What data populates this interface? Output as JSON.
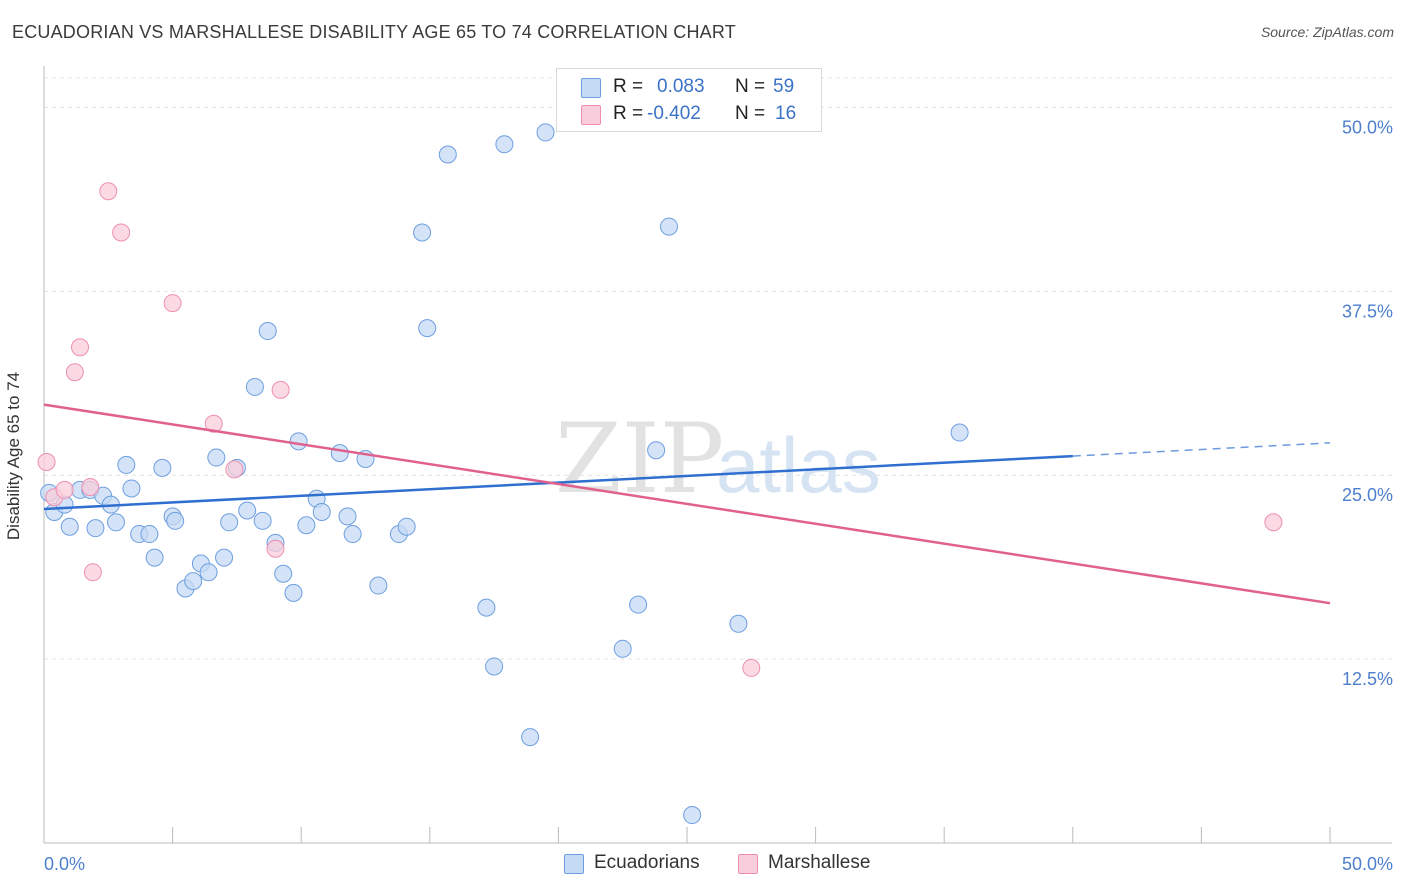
{
  "title": "ECUADORIAN VS MARSHALLESE DISABILITY AGE 65 TO 74 CORRELATION CHART",
  "source": "Source: ZipAtlas.com",
  "watermark": {
    "zip": "ZIP",
    "atlas": "atlas"
  },
  "legend": {
    "r_label": "R =",
    "n_label": "N =",
    "rows": [
      {
        "r": "0.083",
        "n": "59",
        "color": "#aac8f0"
      },
      {
        "r": "-0.402",
        "n": "16",
        "color": "#f6b8cb"
      }
    ]
  },
  "bottom_legend": {
    "ecuadorians": "Ecuadorians",
    "marshallese": "Marshallese"
  },
  "chart_data": {
    "type": "scatter",
    "title": "ECUADORIAN VS MARSHALLESE DISABILITY AGE 65 TO 74 CORRELATION CHART",
    "xlabel": "",
    "ylabel": "Disability Age 65 to 74",
    "xlim": [
      0,
      50
    ],
    "ylim": [
      0,
      52
    ],
    "x_tick_labels": [
      "0.0%",
      "50.0%"
    ],
    "y_ticks": [
      12.5,
      25.0,
      37.5,
      50.0
    ],
    "y_tick_labels": [
      "12.5%",
      "25.0%",
      "37.5%",
      "50.0%"
    ],
    "grid": true,
    "legend_position": "top-center",
    "series": [
      {
        "name": "Ecuadorians",
        "color": "#6d9fe0",
        "fill": "#c5daf4",
        "trend": {
          "x": [
            0,
            40
          ],
          "y": [
            22.7,
            26.3
          ],
          "dashed_to_x": 50,
          "dashed_to_y": 27.2,
          "color": "#2f6fd0"
        },
        "points": [
          [
            0.2,
            23.8
          ],
          [
            0.4,
            22.5
          ],
          [
            0.8,
            23.0
          ],
          [
            1.0,
            21.5
          ],
          [
            1.4,
            24.0
          ],
          [
            1.8,
            24.0
          ],
          [
            2.0,
            21.4
          ],
          [
            2.3,
            23.6
          ],
          [
            2.6,
            23.0
          ],
          [
            2.8,
            21.8
          ],
          [
            3.2,
            25.7
          ],
          [
            3.4,
            24.1
          ],
          [
            3.7,
            21.0
          ],
          [
            4.1,
            21.0
          ],
          [
            4.3,
            19.4
          ],
          [
            4.6,
            25.5
          ],
          [
            5.0,
            22.2
          ],
          [
            5.1,
            21.9
          ],
          [
            5.5,
            17.3
          ],
          [
            5.8,
            17.8
          ],
          [
            6.1,
            19.0
          ],
          [
            6.4,
            18.4
          ],
          [
            6.7,
            26.2
          ],
          [
            7.0,
            19.4
          ],
          [
            7.2,
            21.8
          ],
          [
            7.5,
            25.5
          ],
          [
            7.9,
            22.6
          ],
          [
            8.2,
            31.0
          ],
          [
            8.5,
            21.9
          ],
          [
            8.7,
            34.8
          ],
          [
            9.0,
            20.4
          ],
          [
            9.3,
            18.3
          ],
          [
            9.7,
            17.0
          ],
          [
            9.9,
            27.3
          ],
          [
            10.2,
            21.6
          ],
          [
            10.6,
            23.4
          ],
          [
            10.8,
            22.5
          ],
          [
            11.5,
            26.5
          ],
          [
            11.8,
            22.2
          ],
          [
            12.0,
            21.0
          ],
          [
            12.5,
            26.1
          ],
          [
            13.0,
            17.5
          ],
          [
            13.8,
            21.0
          ],
          [
            14.1,
            21.5
          ],
          [
            14.7,
            41.5
          ],
          [
            14.9,
            35.0
          ],
          [
            15.7,
            46.8
          ],
          [
            17.2,
            16.0
          ],
          [
            17.5,
            12.0
          ],
          [
            17.9,
            47.5
          ],
          [
            18.9,
            7.2
          ],
          [
            19.5,
            48.3
          ],
          [
            22.5,
            13.2
          ],
          [
            23.1,
            16.2
          ],
          [
            23.8,
            26.7
          ],
          [
            24.3,
            41.9
          ],
          [
            25.2,
            1.9
          ],
          [
            27.0,
            14.9
          ],
          [
            35.6,
            27.9
          ]
        ]
      },
      {
        "name": "Marshallese",
        "color": "#ee8fb0",
        "fill": "#f9cddb",
        "trend": {
          "x": [
            0,
            50
          ],
          "y": [
            29.8,
            16.3
          ],
          "color": "#e0608e"
        },
        "points": [
          [
            0.1,
            25.9
          ],
          [
            0.4,
            23.5
          ],
          [
            0.8,
            24.0
          ],
          [
            1.2,
            32.0
          ],
          [
            1.4,
            33.7
          ],
          [
            1.8,
            24.2
          ],
          [
            1.9,
            18.4
          ],
          [
            2.5,
            44.3
          ],
          [
            3.0,
            41.5
          ],
          [
            5.0,
            36.7
          ],
          [
            6.6,
            28.5
          ],
          [
            7.4,
            25.4
          ],
          [
            9.0,
            20.0
          ],
          [
            9.2,
            30.8
          ],
          [
            27.5,
            11.9
          ],
          [
            47.8,
            21.8
          ]
        ]
      }
    ]
  }
}
